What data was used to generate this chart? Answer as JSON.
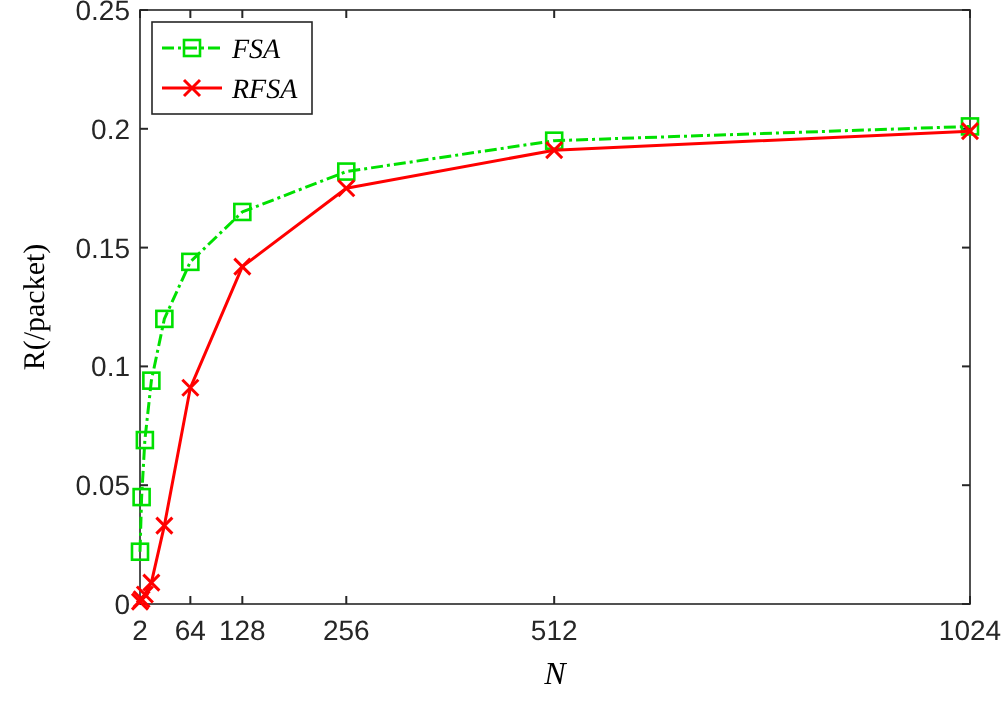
{
  "chart_data": {
    "type": "line",
    "xlabel": "N",
    "ylabel": "R(/packet)",
    "x": [
      2,
      4,
      8,
      16,
      32,
      64,
      128,
      256,
      512,
      1024
    ],
    "xlim": [
      2,
      1024
    ],
    "xticks": [
      2,
      64,
      128,
      256,
      512,
      1024
    ],
    "ylim": [
      0,
      0.25
    ],
    "yticks": [
      0,
      0.05,
      0.1,
      0.15,
      0.2,
      0.25
    ],
    "grid": false,
    "legend": "top left",
    "series": [
      {
        "name": "FSA",
        "color": "#00e000",
        "marker": "square",
        "line_style": "dashed",
        "values": [
          0.022,
          0.045,
          0.069,
          0.094,
          0.12,
          0.144,
          0.165,
          0.182,
          0.195,
          0.201
        ]
      },
      {
        "name": "RFSA",
        "color": "#ff0000",
        "marker": "cross",
        "line_style": "solid",
        "values": [
          0.001,
          0.002,
          0.004,
          0.009,
          0.033,
          0.091,
          0.142,
          0.175,
          0.191,
          0.199
        ]
      }
    ]
  }
}
